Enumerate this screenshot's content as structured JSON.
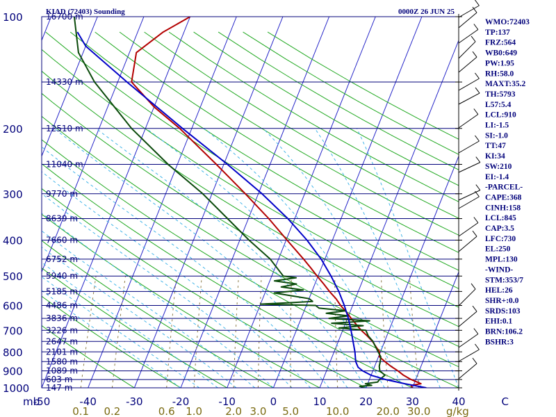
{
  "header": {
    "station": "KIAD (72403) Sounding",
    "datetime": "0000Z 26 JUN 25"
  },
  "colors": {
    "isobar": "#00007a",
    "isotherm": "#2525c8",
    "dry_adiabat": "#1fa81f",
    "moist_adiabat": "#40b4e8",
    "mixing_ratio": "#8b7a46",
    "temperature": "#b30000",
    "dewpoint": "#0a4a0a",
    "parcel": "#0000c8",
    "axis_text": "#7a6a10"
  },
  "indices": [
    "WMO:72403",
    "TP:137",
    "FRZ:564",
    "WB0:649",
    "PW:1.95",
    "RH:58.0",
    "MAXT:35.2",
    "TH:5793",
    "L57:5.4",
    "LCL:910",
    "LI:-1.5",
    "SI:-1.0",
    "TT:47",
    "KI:34",
    "SW:210",
    "EI:-1.4",
    "-PARCEL-",
    "CAPE:368",
    "CINH:158",
    "LCL:845",
    "CAP:3.5",
    "LFC:730",
    "EL:250",
    "MPL:130",
    "-WIND-",
    "STM:353/7",
    "HEL:26",
    "SHR+:0.0",
    "SRDS:103",
    "EHI:0.1",
    "BRN:106.2",
    "BSHR:3"
  ],
  "chart_data": {
    "type": "line",
    "title": "KIAD (72403) Sounding",
    "xlabel": "",
    "ylabel": "",
    "pressure_unit_label": "mb",
    "mixing_ratio_unit_label": "g/kg",
    "temperature_range": [
      -50,
      40
    ],
    "pressure_range": [
      1000,
      100
    ],
    "pressure_ticks": [
      {
        "p": 100,
        "label": "100"
      },
      {
        "p": 200,
        "label": "200"
      },
      {
        "p": 300,
        "label": "300"
      },
      {
        "p": 400,
        "label": "400"
      },
      {
        "p": 500,
        "label": "500"
      },
      {
        "p": 600,
        "label": "600"
      },
      {
        "p": 700,
        "label": "700"
      },
      {
        "p": 800,
        "label": "800"
      },
      {
        "p": 900,
        "label": "900"
      },
      {
        "p": 1000,
        "label": "1000"
      }
    ],
    "temperature_ticks": [
      {
        "t": -50,
        "label": "-50"
      },
      {
        "t": -40,
        "label": "-40"
      },
      {
        "t": -30,
        "label": "-30"
      },
      {
        "t": -20,
        "label": "-20"
      },
      {
        "t": -10,
        "label": "-10"
      },
      {
        "t": 0,
        "label": "0"
      },
      {
        "t": 10,
        "label": "10"
      },
      {
        "t": 20,
        "label": "20"
      },
      {
        "t": 30,
        "label": "30"
      },
      {
        "t": 40,
        "label": "40"
      },
      {
        "t": 50,
        "label": "C"
      }
    ],
    "mixing_ratio_ticks": [
      {
        "w": 0.1,
        "label": "0.1"
      },
      {
        "w": 0.2,
        "label": "0.2"
      },
      {
        "w": 0.6,
        "label": "0.6"
      },
      {
        "w": 1.0,
        "label": "1.0"
      },
      {
        "w": 2.0,
        "label": "2.0"
      },
      {
        "w": 3.0,
        "label": "3.0"
      },
      {
        "w": 5.0,
        "label": "5.0"
      },
      {
        "w": 10.0,
        "label": "10.0"
      },
      {
        "w": 20.0,
        "label": "20.0"
      },
      {
        "w": 30.0,
        "label": "30.0"
      }
    ],
    "height_labels": [
      {
        "p": 100,
        "label": "16700 m"
      },
      {
        "p": 150,
        "label": "14330 m"
      },
      {
        "p": 200,
        "label": "12510 m"
      },
      {
        "p": 250,
        "label": "11040 m"
      },
      {
        "p": 300,
        "label": "9770 m"
      },
      {
        "p": 350,
        "label": "8639 m"
      },
      {
        "p": 400,
        "label": "7660 m"
      },
      {
        "p": 450,
        "label": "6752 m"
      },
      {
        "p": 500,
        "label": "5940 m"
      },
      {
        "p": 550,
        "label": "5185 m"
      },
      {
        "p": 600,
        "label": "4486 m"
      },
      {
        "p": 650,
        "label": "3836 m"
      },
      {
        "p": 700,
        "label": "3226 m"
      },
      {
        "p": 750,
        "label": "2647 m"
      },
      {
        "p": 800,
        "label": "2101 m"
      },
      {
        "p": 850,
        "label": "1580 m"
      },
      {
        "p": 900,
        "label": "1089 m"
      },
      {
        "p": 950,
        "label": "603 m"
      },
      {
        "p": 1000,
        "label": "147 m"
      }
    ],
    "series": [
      {
        "name": "Temperature",
        "points": [
          [
            1000,
            30
          ],
          [
            985,
            29.5
          ],
          [
            975,
            31.5
          ],
          [
            950,
            29
          ],
          [
            925,
            27
          ],
          [
            900,
            25.4
          ],
          [
            875,
            23.5
          ],
          [
            850,
            21.8
          ],
          [
            825,
            20.2
          ],
          [
            800,
            19.8
          ],
          [
            775,
            18.6
          ],
          [
            750,
            17.4
          ],
          [
            725,
            15.8
          ],
          [
            700,
            14
          ],
          [
            675,
            12.4
          ],
          [
            650,
            10.8
          ],
          [
            625,
            9.2
          ],
          [
            600,
            7.4
          ],
          [
            575,
            5.8
          ],
          [
            550,
            3.8
          ],
          [
            525,
            1.9
          ],
          [
            500,
            -0.2
          ],
          [
            475,
            -2.3
          ],
          [
            450,
            -4.6
          ],
          [
            400,
            -9.8
          ],
          [
            350,
            -15.6
          ],
          [
            300,
            -22.8
          ],
          [
            250,
            -31.6
          ],
          [
            200,
            -42.6
          ],
          [
            175,
            -50
          ],
          [
            150,
            -57
          ],
          [
            125,
            -58.5
          ],
          [
            110,
            -54.5
          ],
          [
            100,
            -50
          ]
        ]
      },
      {
        "name": "Dewpoint",
        "points": [
          [
            1000,
            19.5
          ],
          [
            990,
            18.5
          ],
          [
            985,
            21
          ],
          [
            975,
            19.5
          ],
          [
            965,
            22
          ],
          [
            950,
            22.2
          ],
          [
            925,
            23
          ],
          [
            900,
            21.5
          ],
          [
            875,
            21
          ],
          [
            850,
            20.8
          ],
          [
            825,
            20.5
          ],
          [
            800,
            19.5
          ],
          [
            775,
            18.5
          ],
          [
            750,
            17.5
          ],
          [
            725,
            16
          ],
          [
            700,
            15
          ],
          [
            690,
            9
          ],
          [
            680,
            14
          ],
          [
            670,
            7
          ],
          [
            660,
            15
          ],
          [
            650,
            6
          ],
          [
            640,
            10
          ],
          [
            630,
            5
          ],
          [
            620,
            9
          ],
          [
            610,
            3
          ],
          [
            600,
            2
          ],
          [
            595,
            -10
          ],
          [
            590,
            -4
          ],
          [
            585,
            1
          ],
          [
            575,
            0
          ],
          [
            565,
            -4
          ],
          [
            555,
            -8
          ],
          [
            545,
            -2
          ],
          [
            535,
            -7
          ],
          [
            525,
            -4
          ],
          [
            515,
            -9
          ],
          [
            505,
            -4.6
          ],
          [
            500,
            -7.5
          ],
          [
            450,
            -11.8
          ],
          [
            400,
            -18
          ],
          [
            350,
            -24.5
          ],
          [
            300,
            -32
          ],
          [
            250,
            -42
          ],
          [
            200,
            -53
          ],
          [
            150,
            -65
          ],
          [
            125,
            -71
          ],
          [
            100,
            -75
          ]
        ]
      },
      {
        "name": "Parcel",
        "points": [
          [
            1000,
            33
          ],
          [
            975,
            28
          ],
          [
            950,
            23.5
          ],
          [
            925,
            20
          ],
          [
            900,
            17.8
          ],
          [
            880,
            16.5
          ],
          [
            850,
            15.5
          ],
          [
            800,
            14.5
          ],
          [
            750,
            13.2
          ],
          [
            700,
            11.8
          ],
          [
            650,
            10.2
          ],
          [
            600,
            8.2
          ],
          [
            550,
            5.8
          ],
          [
            500,
            2.8
          ],
          [
            450,
            -0.8
          ],
          [
            400,
            -5.5
          ],
          [
            350,
            -11.5
          ],
          [
            300,
            -19.2
          ],
          [
            250,
            -29.2
          ],
          [
            200,
            -42
          ],
          [
            150,
            -58
          ],
          [
            120,
            -70
          ],
          [
            110,
            -73
          ]
        ]
      }
    ]
  }
}
